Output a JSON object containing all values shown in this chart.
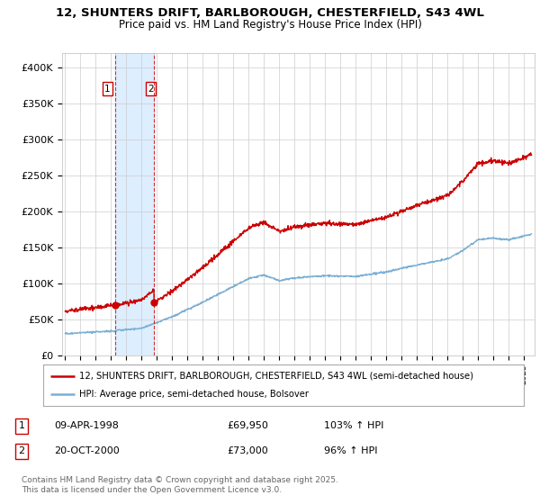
{
  "title_line1": "12, SHUNTERS DRIFT, BARLBOROUGH, CHESTERFIELD, S43 4WL",
  "title_line2": "Price paid vs. HM Land Registry's House Price Index (HPI)",
  "ylim": [
    0,
    420000
  ],
  "yticks": [
    0,
    50000,
    100000,
    150000,
    200000,
    250000,
    300000,
    350000,
    400000
  ],
  "ytick_labels": [
    "£0",
    "£50K",
    "£100K",
    "£150K",
    "£200K",
    "£250K",
    "£300K",
    "£350K",
    "£400K"
  ],
  "hpi_color": "#7bafd4",
  "price_color": "#cc0000",
  "purchase1_date": 1998.27,
  "purchase1_price": 69950,
  "purchase2_date": 2000.8,
  "purchase2_price": 73000,
  "legend_line1": "12, SHUNTERS DRIFT, BARLBOROUGH, CHESTERFIELD, S43 4WL (semi-detached house)",
  "legend_line2": "HPI: Average price, semi-detached house, Bolsover",
  "table_row1": [
    "1",
    "09-APR-1998",
    "£69,950",
    "103% ↑ HPI"
  ],
  "table_row2": [
    "2",
    "20-OCT-2000",
    "£73,000",
    "96% ↑ HPI"
  ],
  "footer": "Contains HM Land Registry data © Crown copyright and database right 2025.\nThis data is licensed under the Open Government Licence v3.0.",
  "bg_color": "#ffffff",
  "grid_color": "#cccccc",
  "span_color": "#ddeeff",
  "xstart": 1995,
  "xend": 2025,
  "fig_width": 6.0,
  "fig_height": 5.6
}
